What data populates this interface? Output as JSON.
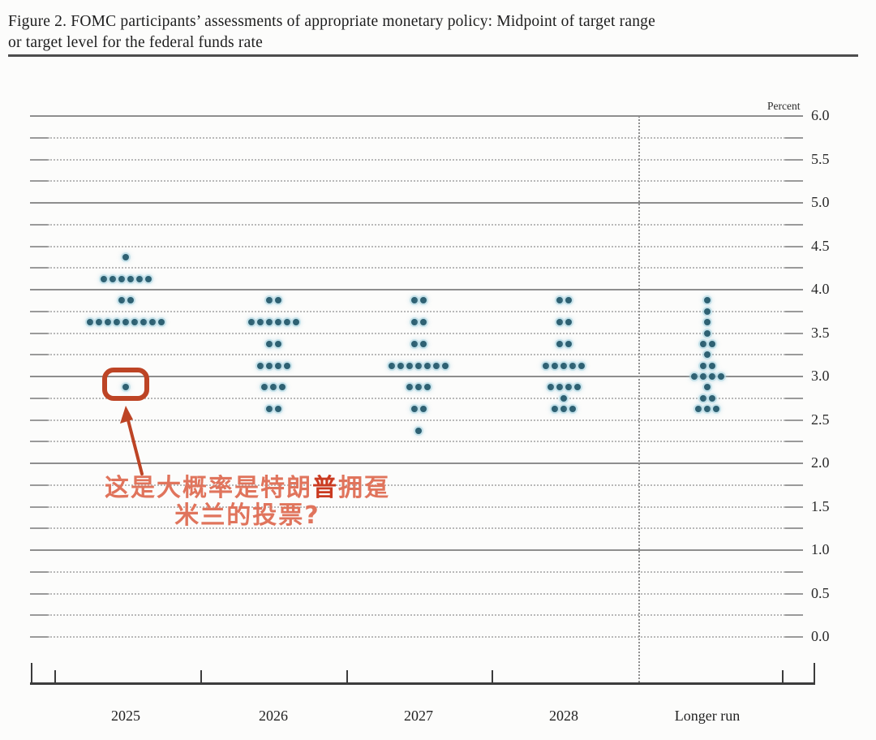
{
  "header": {
    "title_line1": "Figure 2. FOMC participants’ assessments of appropriate monetary policy: Midpoint of target range",
    "title_line2": "or target level for the federal funds rate"
  },
  "chart_data": {
    "type": "scatter",
    "subtype": "fomc-dot-plot",
    "title": "FOMC participants’ assessments of appropriate monetary policy: Midpoint of target range or target level for the federal funds rate",
    "unit_label": "Percent",
    "ylim": [
      0.0,
      6.0
    ],
    "grid_interval": 0.25,
    "label_interval": 0.5,
    "y_tick_labels": [
      "6.0",
      "5.5",
      "5.0",
      "4.5",
      "4.0",
      "3.5",
      "3.0",
      "2.5",
      "2.0",
      "1.5",
      "1.0",
      "0.5",
      "0.0"
    ],
    "grid": "solid major lines at each integer percent, dotted lines each 0.25, dotted vertical divider before Longer run",
    "categories": [
      "2025",
      "2026",
      "2027",
      "2028",
      "Longer run"
    ],
    "series": [
      {
        "category": "2025",
        "dots": [
          {
            "rate": 4.375,
            "count": 1
          },
          {
            "rate": 4.125,
            "count": 6
          },
          {
            "rate": 3.875,
            "count": 2
          },
          {
            "rate": 3.625,
            "count": 9
          },
          {
            "rate": 2.875,
            "count": 1
          }
        ]
      },
      {
        "category": "2026",
        "dots": [
          {
            "rate": 3.875,
            "count": 2
          },
          {
            "rate": 3.625,
            "count": 6
          },
          {
            "rate": 3.375,
            "count": 2
          },
          {
            "rate": 3.125,
            "count": 4
          },
          {
            "rate": 2.875,
            "count": 3
          },
          {
            "rate": 2.625,
            "count": 2
          }
        ]
      },
      {
        "category": "2027",
        "dots": [
          {
            "rate": 3.875,
            "count": 2
          },
          {
            "rate": 3.625,
            "count": 2
          },
          {
            "rate": 3.375,
            "count": 2
          },
          {
            "rate": 3.125,
            "count": 7
          },
          {
            "rate": 2.875,
            "count": 3
          },
          {
            "rate": 2.625,
            "count": 2
          },
          {
            "rate": 2.375,
            "count": 1
          }
        ]
      },
      {
        "category": "2028",
        "dots": [
          {
            "rate": 3.875,
            "count": 2
          },
          {
            "rate": 3.625,
            "count": 2
          },
          {
            "rate": 3.375,
            "count": 2
          },
          {
            "rate": 3.125,
            "count": 5
          },
          {
            "rate": 2.875,
            "count": 4
          },
          {
            "rate": 2.75,
            "count": 1
          },
          {
            "rate": 2.625,
            "count": 3
          }
        ]
      },
      {
        "category": "Longer run",
        "dots": [
          {
            "rate": 3.875,
            "count": 1
          },
          {
            "rate": 3.75,
            "count": 1
          },
          {
            "rate": 3.625,
            "count": 1
          },
          {
            "rate": 3.5,
            "count": 1
          },
          {
            "rate": 3.375,
            "count": 2
          },
          {
            "rate": 3.25,
            "count": 1
          },
          {
            "rate": 3.125,
            "count": 2
          },
          {
            "rate": 3.0,
            "count": 4
          },
          {
            "rate": 2.875,
            "count": 1
          },
          {
            "rate": 2.75,
            "count": 2
          },
          {
            "rate": 2.625,
            "count": 3
          }
        ]
      }
    ],
    "dot_color": "#2e6173"
  },
  "annotation": {
    "line1_part1": "这是大概率是特朗",
    "line1_emphasis": "普",
    "line1_part2": "拥趸",
    "line2": "米兰的投票?",
    "text_color": "#e0745c",
    "emphasis_color": "#ca3a20",
    "shape_color": "#bd4425",
    "highlight": {
      "category": "2025",
      "rate": 2.875
    }
  }
}
